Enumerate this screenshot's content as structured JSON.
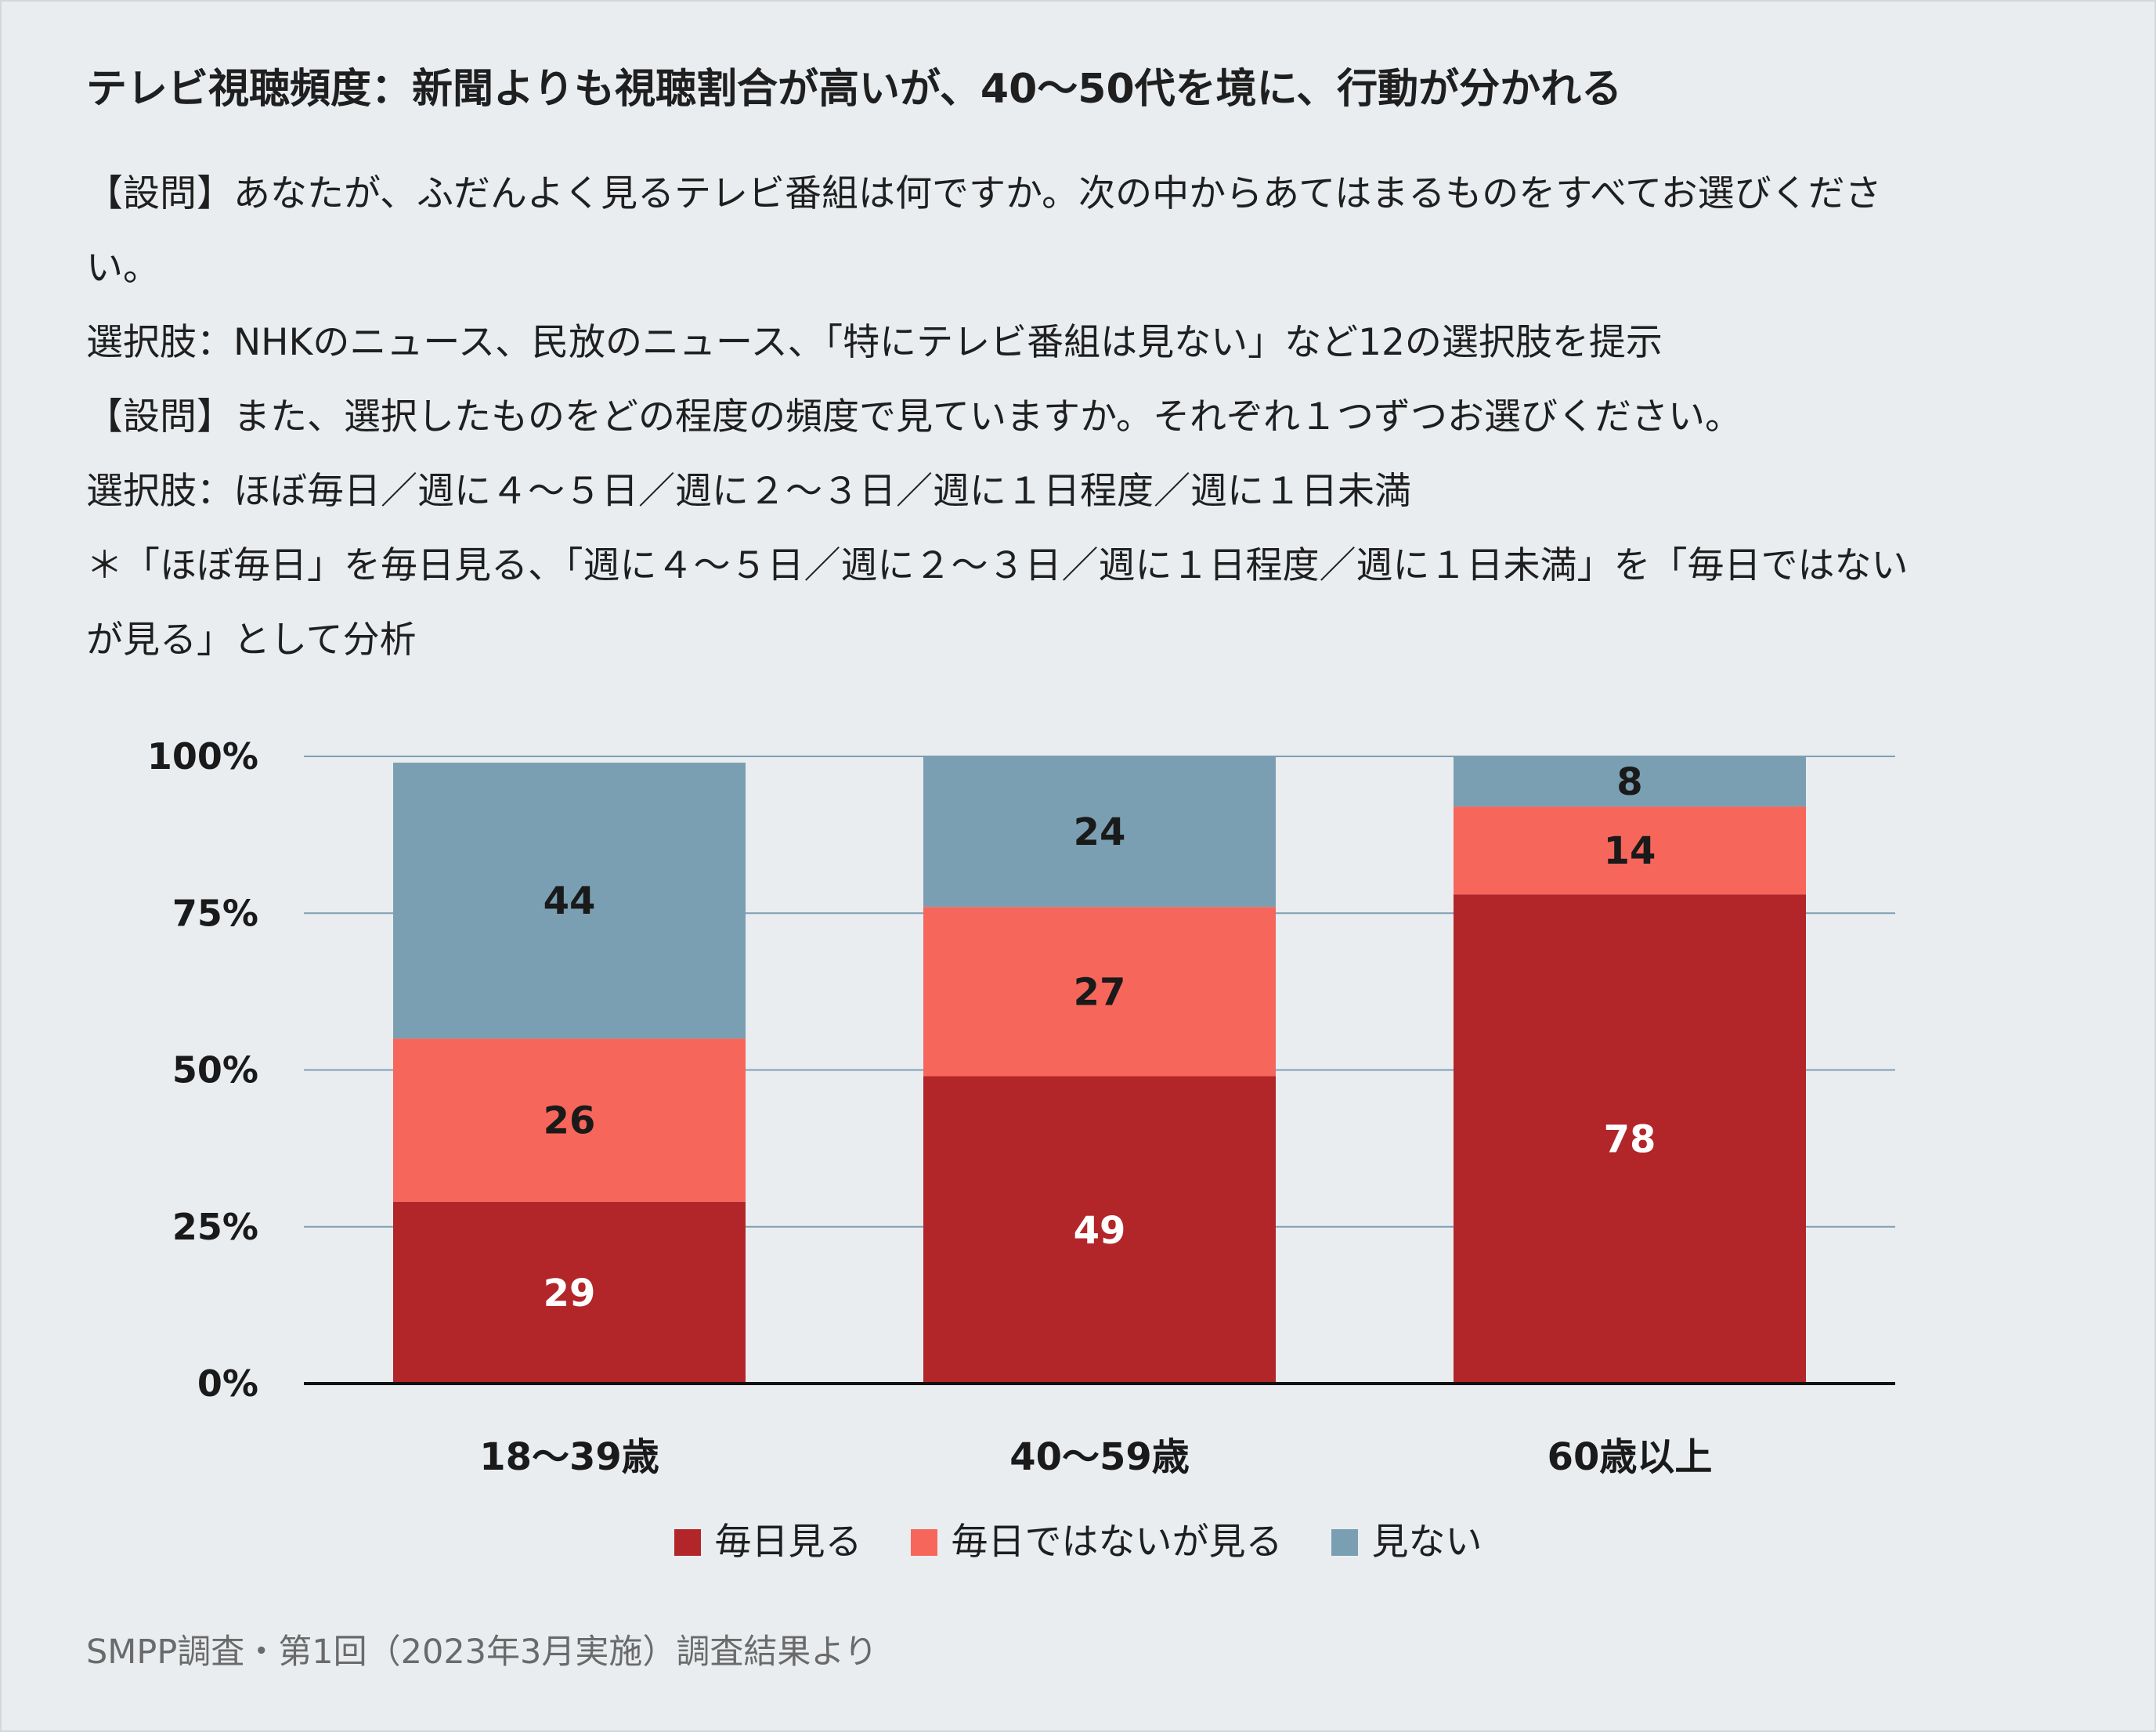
{
  "title": "テレビ視聴頻度：新聞よりも視聴割合が高いが、40〜50代を境に、行動が分かれる",
  "notes": [
    "【設問】あなたが、ふだんよく見るテレビ番組は何ですか。次の中からあてはまるものをすべてお選びくださ",
    "い。",
    "選択肢：NHKのニュース、民放のニュース、「特にテレビ番組は見ない」など12の選択肢を提示",
    "【設問】また、選択したものをどの程度の頻度で見ていますか。それぞれ１つずつお選びください。",
    "選択肢：ほぼ毎日／週に４〜５日／週に２〜３日／週に１日程度／週に１日未満",
    "＊「ほぼ毎日」を毎日見る、「週に４〜５日／週に２〜３日／週に１日程度／週に１日未満」を「毎日ではない",
    "が見る」として分析"
  ],
  "footer": "SMPP調査・第1回（2023年3月実施）調査結果より",
  "chart_data": {
    "type": "bar",
    "stacked": true,
    "categories": [
      "18〜39歳",
      "40〜59歳",
      "60歳以上"
    ],
    "series": [
      {
        "name": "毎日見る",
        "values": [
          29,
          49,
          78
        ],
        "color": "#b2262a",
        "label_color": "#ffffff"
      },
      {
        "name": "毎日ではないが見る",
        "values": [
          26,
          27,
          14
        ],
        "color": "#f7665b",
        "label_color": "#1a1a1a"
      },
      {
        "name": "見ない",
        "values": [
          44,
          24,
          8
        ],
        "color": "#7a9fb2",
        "label_color": "#1a1a1a"
      }
    ],
    "ylim": [
      0,
      100
    ],
    "yticks": [
      "0%",
      "25%",
      "50%",
      "75%",
      "100%"
    ],
    "ytick_values": [
      0,
      25,
      50,
      75,
      100
    ],
    "grid": true,
    "legend_position": "bottom",
    "xlabel": "",
    "ylabel": ""
  }
}
